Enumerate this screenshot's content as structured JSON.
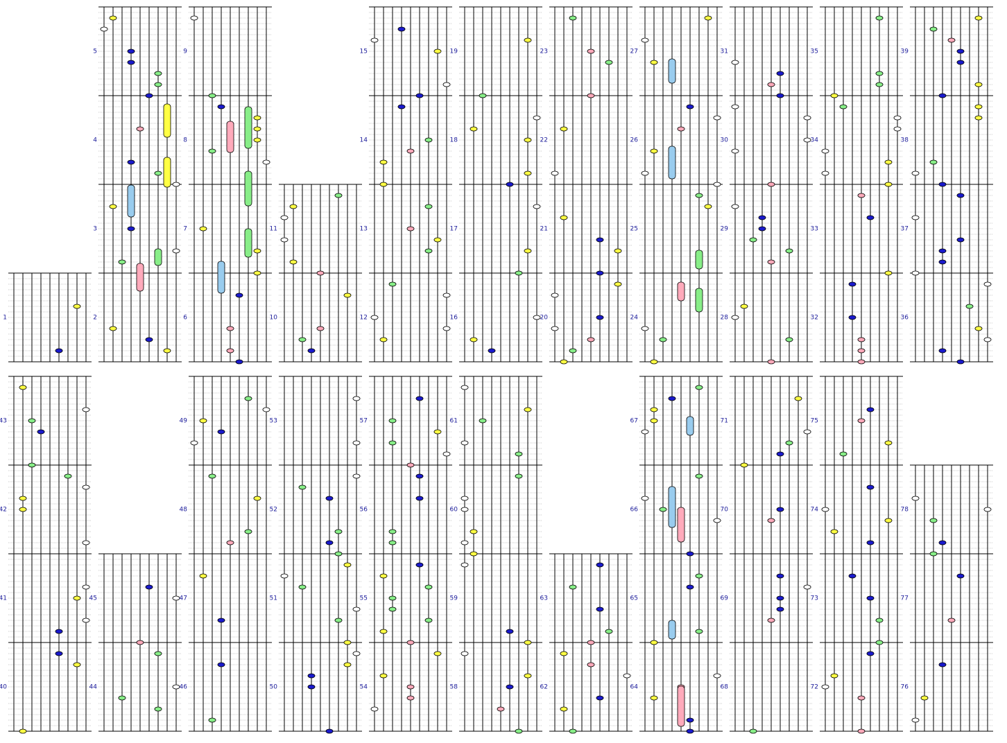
{
  "rows": [
    {
      "panels": [
        {
          "measures": [
            1
          ]
        },
        {
          "measures": [
            2,
            3,
            4,
            5
          ]
        },
        {
          "measures": [
            6,
            7,
            8,
            9
          ]
        },
        {
          "measures": [
            10,
            11
          ]
        },
        {
          "measures": [
            12,
            13,
            14,
            15
          ]
        },
        {
          "measures": [
            16,
            17,
            18,
            19
          ]
        },
        {
          "measures": [
            20,
            21,
            22,
            23
          ]
        },
        {
          "measures": [
            24,
            25,
            26,
            27
          ]
        },
        {
          "measures": [
            28,
            29,
            30,
            31
          ]
        },
        {
          "measures": [
            32,
            33,
            34,
            35
          ]
        },
        {
          "measures": [
            36,
            37,
            38,
            39
          ]
        }
      ]
    },
    {
      "panels": [
        {
          "measures": [
            40,
            41,
            42,
            43
          ]
        },
        {
          "measures": [
            44,
            45
          ]
        },
        {
          "measures": [
            46,
            47,
            48,
            49
          ]
        },
        {
          "measures": [
            50,
            51,
            52,
            53
          ]
        },
        {
          "measures": [
            54,
            55,
            56,
            57
          ]
        },
        {
          "measures": [
            58,
            59,
            60,
            61
          ]
        },
        {
          "measures": [
            62,
            63
          ]
        },
        {
          "measures": [
            64,
            65,
            66,
            67
          ]
        },
        {
          "measures": [
            68,
            69,
            70,
            71
          ]
        },
        {
          "measures": [
            72,
            73,
            74,
            75
          ]
        },
        {
          "measures": [
            76,
            77,
            78
          ]
        }
      ]
    }
  ]
}
